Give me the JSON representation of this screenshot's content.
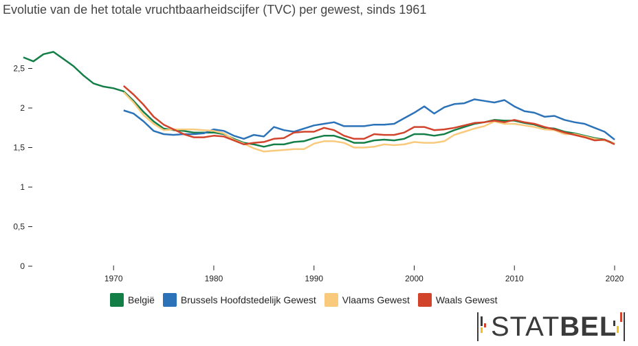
{
  "title": "Evolutie van de het totale vruchtbaarheidscijfer (TVC) per gewest, sinds 1961",
  "logo": {
    "text_light": "STAT",
    "text_bold": "BEL"
  },
  "chart_data": {
    "type": "line",
    "title": "Evolutie van de het totale vruchtbaarheidscijfer (TVC) per gewest, sinds 1961",
    "xlabel": "",
    "ylabel": "",
    "xlim": [
      1961,
      2020
    ],
    "ylim": [
      0,
      2.75
    ],
    "x_ticks": [
      1970,
      1980,
      1990,
      2000,
      2010,
      2020
    ],
    "y_ticks": [
      0,
      0.5,
      1,
      1.5,
      2,
      2.5
    ],
    "y_tick_labels": [
      "0",
      "0,5",
      "1",
      "1,5",
      "2",
      "2,5"
    ],
    "grid": false,
    "legend_position": "bottom",
    "series": [
      {
        "name": "België",
        "color": "#137F47",
        "x": [
          1961,
          1962,
          1963,
          1964,
          1965,
          1966,
          1967,
          1968,
          1969,
          1970,
          1971,
          1972,
          1973,
          1974,
          1975,
          1976,
          1977,
          1978,
          1979,
          1980,
          1981,
          1982,
          1983,
          1984,
          1985,
          1986,
          1987,
          1988,
          1989,
          1990,
          1991,
          1992,
          1993,
          1994,
          1995,
          1996,
          1997,
          1998,
          1999,
          2000,
          2001,
          2002,
          2003,
          2004,
          2005,
          2006,
          2007,
          2008,
          2009,
          2010,
          2011,
          2012,
          2013,
          2014,
          2015,
          2016,
          2017,
          2018,
          2019,
          2020
        ],
        "values": [
          2.64,
          2.59,
          2.68,
          2.71,
          2.62,
          2.53,
          2.41,
          2.31,
          2.27,
          2.25,
          2.21,
          2.09,
          1.95,
          1.83,
          1.74,
          1.72,
          1.71,
          1.69,
          1.69,
          1.69,
          1.67,
          1.61,
          1.56,
          1.54,
          1.51,
          1.54,
          1.54,
          1.57,
          1.58,
          1.62,
          1.65,
          1.65,
          1.61,
          1.56,
          1.56,
          1.59,
          1.6,
          1.59,
          1.61,
          1.67,
          1.67,
          1.65,
          1.67,
          1.72,
          1.76,
          1.8,
          1.82,
          1.85,
          1.84,
          1.84,
          1.81,
          1.79,
          1.75,
          1.74,
          1.7,
          1.68,
          1.65,
          1.62,
          1.6,
          1.55
        ]
      },
      {
        "name": "Brussels Hoofdstedelijk Gewest",
        "color": "#2B72B8",
        "x": [
          1971,
          1972,
          1973,
          1974,
          1975,
          1976,
          1977,
          1978,
          1979,
          1980,
          1981,
          1982,
          1983,
          1984,
          1985,
          1986,
          1987,
          1988,
          1989,
          1990,
          1991,
          1992,
          1993,
          1994,
          1995,
          1996,
          1997,
          1998,
          1999,
          2000,
          2001,
          2002,
          2003,
          2004,
          2005,
          2006,
          2007,
          2008,
          2009,
          2010,
          2011,
          2012,
          2013,
          2014,
          2015,
          2016,
          2017,
          2018,
          2019,
          2020
        ],
        "values": [
          1.97,
          1.93,
          1.83,
          1.71,
          1.67,
          1.66,
          1.67,
          1.67,
          1.68,
          1.73,
          1.71,
          1.65,
          1.61,
          1.66,
          1.64,
          1.76,
          1.72,
          1.7,
          1.74,
          1.78,
          1.8,
          1.82,
          1.77,
          1.77,
          1.77,
          1.79,
          1.79,
          1.8,
          1.87,
          1.94,
          2.02,
          1.93,
          2.01,
          2.05,
          2.06,
          2.11,
          2.09,
          2.07,
          2.1,
          2.02,
          1.96,
          1.94,
          1.89,
          1.9,
          1.85,
          1.82,
          1.8,
          1.75,
          1.7,
          1.6
        ]
      },
      {
        "name": "Vlaams Gewest",
        "color": "#F9C97C",
        "x": [
          1971,
          1972,
          1973,
          1974,
          1975,
          1976,
          1977,
          1978,
          1979,
          1980,
          1981,
          1982,
          1983,
          1984,
          1985,
          1986,
          1987,
          1988,
          1989,
          1990,
          1991,
          1992,
          1993,
          1994,
          1995,
          1996,
          1997,
          1998,
          1999,
          2000,
          2001,
          2002,
          2003,
          2004,
          2005,
          2006,
          2007,
          2008,
          2009,
          2010,
          2011,
          2012,
          2013,
          2014,
          2015,
          2016,
          2017,
          2018,
          2019,
          2020
        ],
        "values": [
          2.2,
          2.07,
          1.91,
          1.8,
          1.72,
          1.73,
          1.73,
          1.73,
          1.72,
          1.71,
          1.68,
          1.6,
          1.55,
          1.49,
          1.45,
          1.46,
          1.47,
          1.48,
          1.48,
          1.55,
          1.58,
          1.58,
          1.56,
          1.5,
          1.5,
          1.51,
          1.54,
          1.53,
          1.54,
          1.57,
          1.56,
          1.56,
          1.58,
          1.66,
          1.7,
          1.74,
          1.77,
          1.83,
          1.8,
          1.8,
          1.78,
          1.76,
          1.73,
          1.72,
          1.67,
          1.67,
          1.64,
          1.61,
          1.59,
          1.55
        ]
      },
      {
        "name": "Waals Gewest",
        "color": "#D1432A",
        "x": [
          1971,
          1972,
          1973,
          1974,
          1975,
          1976,
          1977,
          1978,
          1979,
          1980,
          1981,
          1982,
          1983,
          1984,
          1985,
          1986,
          1987,
          1988,
          1989,
          1990,
          1991,
          1992,
          1993,
          1994,
          1995,
          1996,
          1997,
          1998,
          1999,
          2000,
          2001,
          2002,
          2003,
          2004,
          2005,
          2006,
          2007,
          2008,
          2009,
          2010,
          2011,
          2012,
          2013,
          2014,
          2015,
          2016,
          2017,
          2018,
          2019,
          2020
        ],
        "values": [
          2.28,
          2.17,
          2.04,
          1.89,
          1.79,
          1.73,
          1.67,
          1.63,
          1.63,
          1.65,
          1.64,
          1.59,
          1.54,
          1.56,
          1.57,
          1.61,
          1.62,
          1.69,
          1.7,
          1.7,
          1.75,
          1.72,
          1.65,
          1.61,
          1.61,
          1.67,
          1.66,
          1.66,
          1.69,
          1.76,
          1.76,
          1.72,
          1.73,
          1.75,
          1.78,
          1.81,
          1.82,
          1.84,
          1.82,
          1.85,
          1.82,
          1.8,
          1.76,
          1.73,
          1.69,
          1.66,
          1.63,
          1.59,
          1.6,
          1.54
        ]
      }
    ]
  }
}
